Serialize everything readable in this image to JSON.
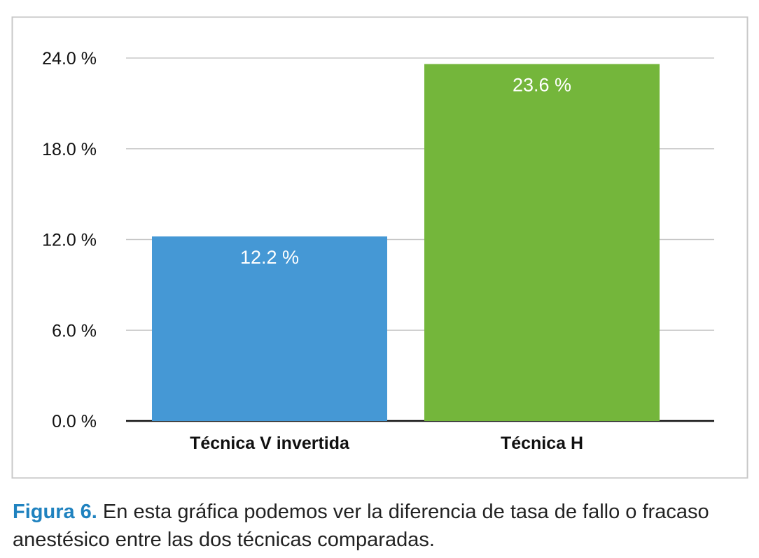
{
  "chart_data": {
    "type": "bar",
    "categories": [
      "Técnica V invertida",
      "Técnica H"
    ],
    "values": [
      12.2,
      23.6
    ],
    "value_labels": [
      "12.2 %",
      "23.6 %"
    ],
    "colors": [
      "#4598d5",
      "#74b63b"
    ],
    "yticks": [
      0,
      6,
      12,
      18,
      24
    ],
    "ytick_labels": [
      "0.0 %",
      "6.0 %",
      "12.0 %",
      "18.0 %",
      "24.0 %"
    ],
    "ylim": [
      0,
      24
    ],
    "grid": true,
    "title": "",
    "xlabel": "",
    "ylabel": ""
  },
  "caption": {
    "label": "Figura 6.",
    "text": " En esta gráfica podemos ver la diferencia de tasa de fallo o fracaso anestésico entre las dos técnicas comparadas."
  }
}
